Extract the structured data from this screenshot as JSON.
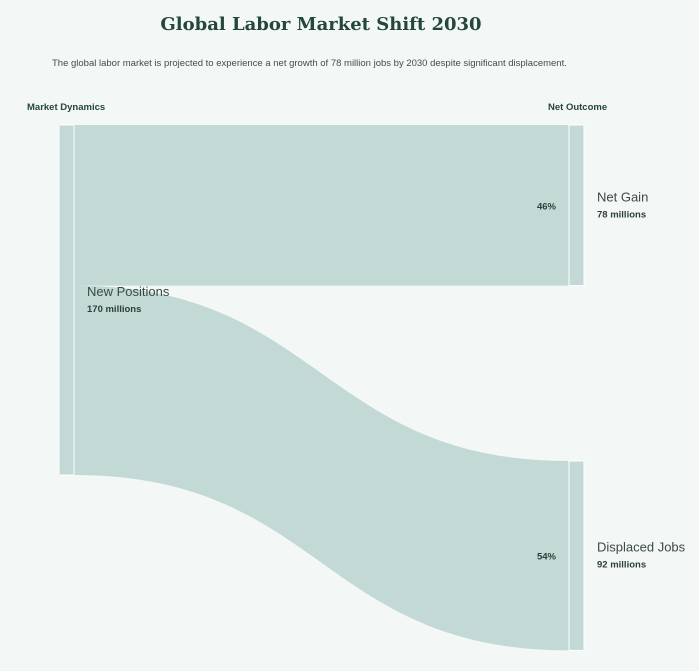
{
  "title": "Global Labor Market Shift 2030",
  "subtitle": "The global labor market is projected to experience a net growth of 78 million jobs by 2030 despite significant displacement.",
  "columns": {
    "left": "Market Dynamics",
    "right": "Net Outcome"
  },
  "colors": {
    "flow": "#c2d9d5",
    "node": "#c2d9d5",
    "node_edge": "#ffffff",
    "background": "#f3f7f5"
  },
  "chart_data": {
    "type": "sankey",
    "title": "Global Labor Market Shift 2030",
    "source_node": {
      "name": "New Positions",
      "value": 170,
      "value_label": "170 millions"
    },
    "target_nodes": [
      {
        "name": "Net Gain",
        "value": 78,
        "value_label": "78 millions",
        "share_label": "46%"
      },
      {
        "name": "Displaced Jobs",
        "value": 92,
        "value_label": "92 millions",
        "share_label": "54%"
      }
    ],
    "links": [
      {
        "source": "New Positions",
        "target": "Net Gain",
        "value": 78
      },
      {
        "source": "New Positions",
        "target": "Displaced Jobs",
        "value": 92
      }
    ]
  }
}
